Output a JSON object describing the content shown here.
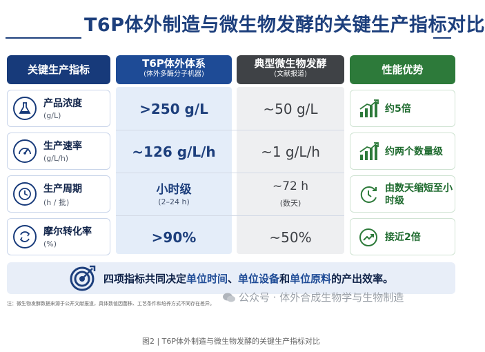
{
  "title": "T6P体外制造与微生物发酵的关键生产指标对比",
  "headers": {
    "indicator": "关键生产指标",
    "t6p_line1": "T6P体外体系",
    "t6p_line2": "(体外多酶分子机器)",
    "typical_line1": "典型微生物发酵",
    "typical_line2": "(文献报道)",
    "advantage": "性能优势"
  },
  "rows": [
    {
      "name": "产品浓度",
      "unit": "(g/L)",
      "icon": "flask-icon",
      "t6p": ">250 g/L",
      "typical": "~50 g/L",
      "adv_icon": "bar-growth-icon",
      "advantage": "约5倍"
    },
    {
      "name": "生产速率",
      "unit": "(g/L/h)",
      "icon": "speedometer-icon",
      "t6p": "~126 g/L/h",
      "typical": "~1 g/L/h",
      "adv_icon": "bar-growth-icon",
      "advantage": "约两个数量级"
    },
    {
      "name": "生产周期",
      "unit": "(h / 批)",
      "icon": "clock-icon",
      "t6p": "小时级",
      "t6p_sub": "(2–24 h)",
      "typical": "~72 h",
      "typical_sub": "(数天)",
      "adv_icon": "clock-arrow-icon",
      "advantage": "由数天缩短至小时级"
    },
    {
      "name": "摩尔转化率",
      "unit": "(%)",
      "icon": "recycle-icon",
      "t6p": ">90%",
      "typical": "~50%",
      "adv_icon": "trend-up-icon",
      "advantage": "接近2倍"
    }
  ],
  "summary": {
    "prefix": "四项指标共同决定",
    "hl1": "单位时间",
    "sep1": "、",
    "hl2": "单位设备",
    "sep2": "和",
    "hl3": "单位原料",
    "suffix": "的产出效率。",
    "icon": "target-icon"
  },
  "note": "注：微生物发酵数据来源于公开文献报道，具体数值因菌株、工艺条件和培养方式不同存在差异。",
  "watermark": "公众号 · 体外合成生物学与生物制造",
  "caption": "图2 | T6P体外制造与微生物发酵的关键生产指标对比",
  "colors": {
    "navy": "#173a7a",
    "blue": "#1e4b96",
    "gray": "#3f4246",
    "green": "#2d7a3a"
  }
}
